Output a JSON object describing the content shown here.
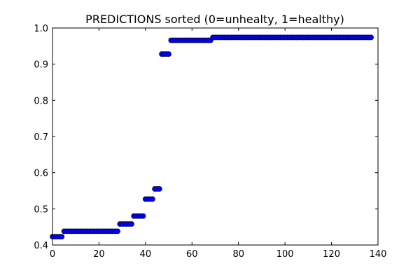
{
  "chart_data": {
    "type": "scatter",
    "title": "PREDICTIONS sorted (0=unhealty, 1=healthy)",
    "xlabel": "",
    "ylabel": "",
    "xlim": [
      0,
      140
    ],
    "ylim": [
      0.4,
      1.0
    ],
    "xticks": [
      "0",
      "20",
      "40",
      "60",
      "80",
      "100",
      "120",
      "140"
    ],
    "yticks": [
      "0.4",
      "0.5",
      "0.6",
      "0.7",
      "0.8",
      "0.9",
      "1.0"
    ],
    "grid": false,
    "marker_color": "#0000ff",
    "segments": [
      {
        "x_start": 0,
        "x_end": 4,
        "y": 0.423
      },
      {
        "x_start": 5,
        "x_end": 28,
        "y": 0.438
      },
      {
        "x_start": 29,
        "x_end": 34,
        "y": 0.458
      },
      {
        "x_start": 35,
        "x_end": 39,
        "y": 0.48
      },
      {
        "x_start": 40,
        "x_end": 43,
        "y": 0.527
      },
      {
        "x_start": 44,
        "x_end": 46,
        "y": 0.555
      },
      {
        "x_start": 47,
        "x_end": 50,
        "y": 0.928
      },
      {
        "x_start": 51,
        "x_end": 68,
        "y": 0.966
      },
      {
        "x_start": 69,
        "x_end": 137,
        "y": 0.974
      }
    ]
  }
}
